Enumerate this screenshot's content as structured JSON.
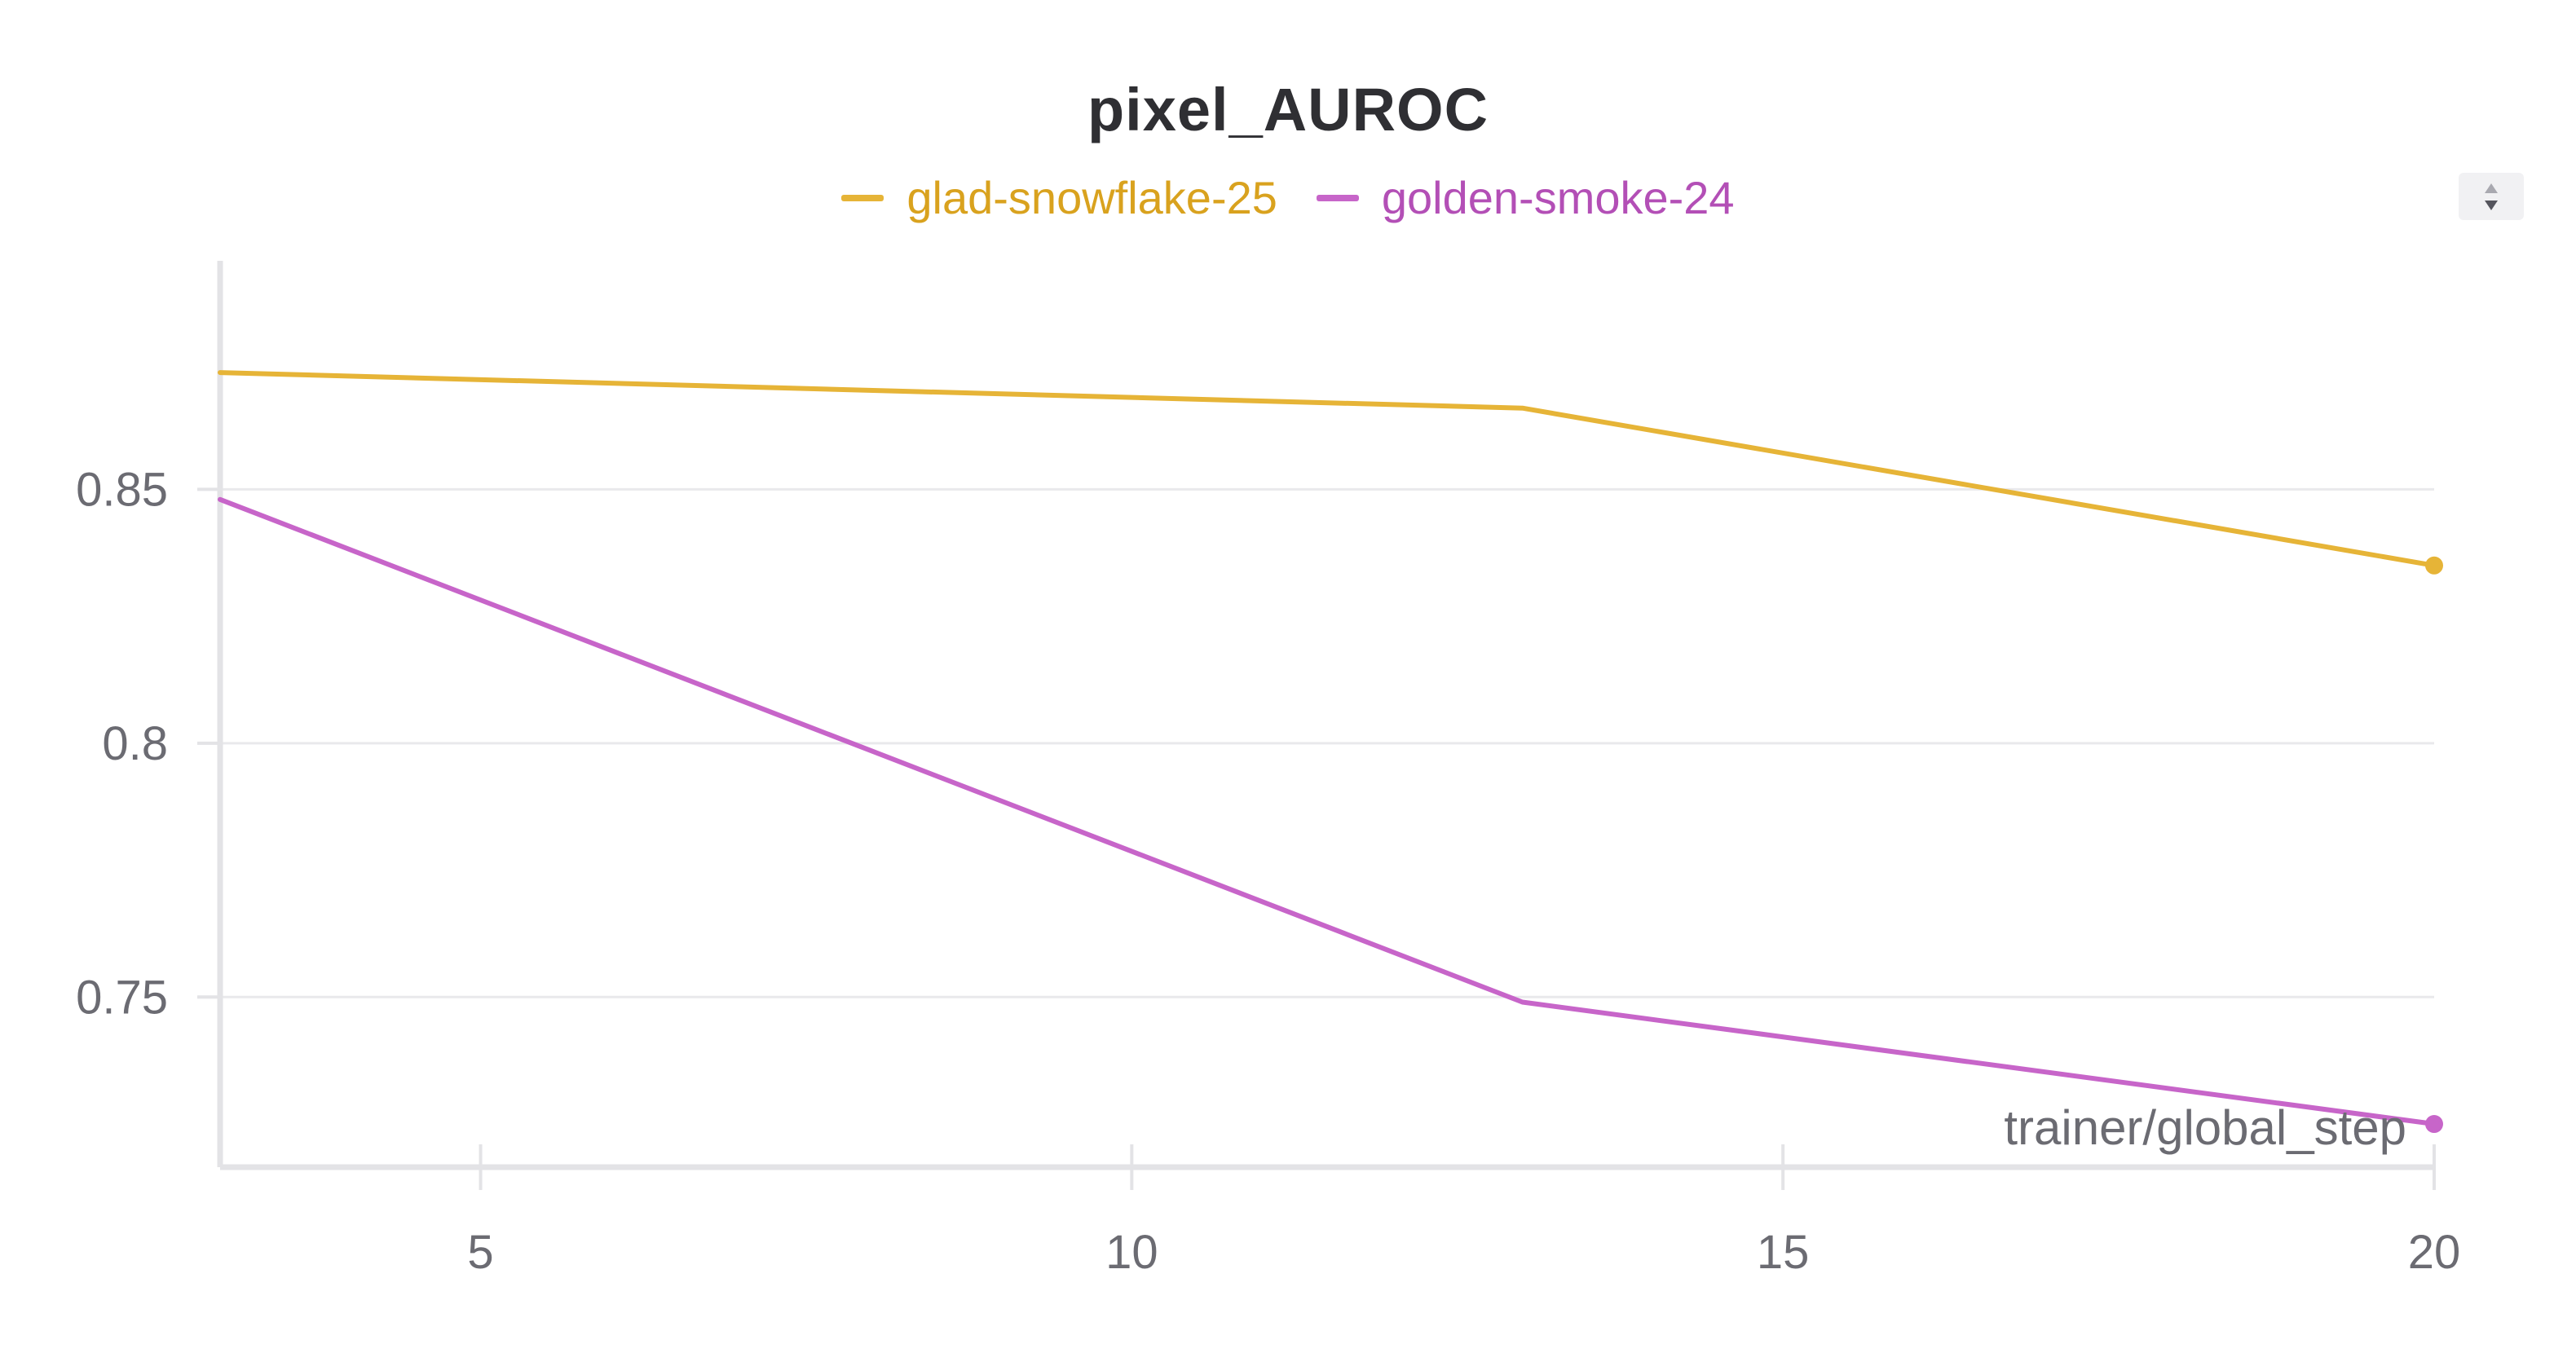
{
  "chart_data": {
    "type": "line",
    "title": "pixel_AUROC",
    "xlabel": "trainer/global_step",
    "ylabel": "",
    "xlim": [
      3,
      20
    ],
    "ylim": [
      0.7165,
      0.895
    ],
    "x_ticks": [
      5,
      10,
      15,
      20
    ],
    "x_tick_labels": [
      "5",
      "10",
      "15",
      "20"
    ],
    "y_ticks": [
      0.75,
      0.8,
      0.85
    ],
    "y_tick_labels": [
      "0.75",
      "0.8",
      "0.85"
    ],
    "grid": "horizontal",
    "legend_position": "top-center",
    "series": [
      {
        "name": "glad-snowflake-25",
        "color": "#e6b437",
        "label_color": "#d9a21e",
        "x": [
          3,
          13,
          20
        ],
        "y": [
          0.873,
          0.866,
          0.835
        ],
        "end_marker": true
      },
      {
        "name": "golden-smoke-24",
        "color": "#c765c9",
        "label_color": "#b34fb6",
        "x": [
          3,
          13,
          20
        ],
        "y": [
          0.848,
          0.749,
          0.725
        ],
        "end_marker": true
      }
    ]
  },
  "legend_scroll_icon": "up-down-arrows-icon"
}
